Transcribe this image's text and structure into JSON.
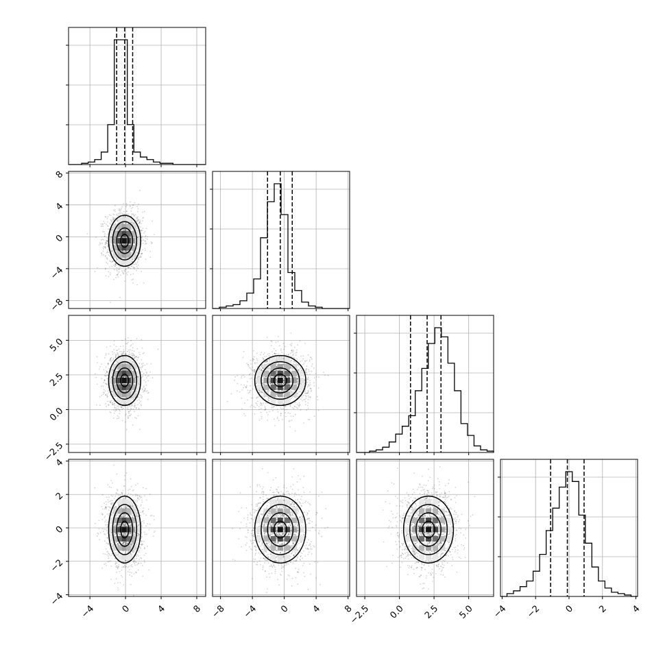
{
  "chart_data": {
    "type": "corner",
    "grid": true,
    "colors": {
      "hist": "#000000",
      "grid": "#b0b0b0",
      "points": "#000000"
    },
    "parameters": [
      {
        "index": 0,
        "range": [
          -6.4,
          9.0
        ],
        "ticks": [
          -4,
          0,
          4,
          8
        ],
        "tick_labels": [
          "−4",
          "0",
          "4",
          "8"
        ],
        "quantiles": [
          -1.0,
          -0.1,
          0.8
        ],
        "mean": -0.1,
        "sd": 0.9,
        "hist_counts": [
          0,
          0,
          1,
          2,
          4,
          10,
          32,
          100,
          100,
          32,
          10,
          6,
          4,
          2,
          1,
          1,
          0,
          0,
          0,
          0,
          0
        ]
      },
      {
        "index": 1,
        "range": [
          -9.0,
          8.2
        ],
        "ticks": [
          -8,
          -4,
          0,
          4,
          8
        ],
        "tick_labels": [
          "−8",
          "−4",
          "0",
          "4",
          "8"
        ],
        "quantiles": [
          -2.1,
          -0.5,
          1.0
        ],
        "mean": -0.5,
        "sd": 1.6,
        "hist_counts": [
          0,
          1,
          2,
          3,
          6,
          12,
          23,
          55,
          83,
          97,
          73,
          28,
          14,
          5,
          2,
          1,
          0,
          0,
          0,
          0
        ]
      },
      {
        "index": 2,
        "range": [
          -3.1,
          6.8
        ],
        "ticks": [
          -2.5,
          0.0,
          2.5,
          5.0
        ],
        "tick_labels": [
          "−2.5",
          "0.0",
          "2.5",
          "5.0"
        ],
        "quantiles": [
          0.8,
          2.0,
          3.0
        ],
        "mean": 2.1,
        "sd": 0.9,
        "hist_counts": [
          0,
          0,
          1,
          2,
          4,
          8,
          14,
          20,
          28,
          47,
          64,
          83,
          95,
          88,
          68,
          47,
          22,
          13,
          5,
          2,
          1
        ]
      },
      {
        "index": 3,
        "range": [
          -4.1,
          4.1
        ],
        "ticks": [
          -4,
          -2,
          0,
          2,
          4
        ],
        "tick_labels": [
          "−4",
          "−2",
          "0",
          "2",
          "4"
        ],
        "quantiles": [
          -1.1,
          -0.1,
          0.9
        ],
        "mean": -0.1,
        "sd": 1.0,
        "hist_counts": [
          0,
          2,
          4,
          7,
          11,
          18,
          30,
          47,
          63,
          78,
          89,
          82,
          58,
          38,
          21,
          11,
          6,
          3,
          2,
          1,
          0
        ]
      }
    ],
    "left_axis_labels": {
      "row1": [
        "8",
        "4",
        "0",
        "−4",
        "−8"
      ],
      "row2": [
        "5.0",
        "2.5",
        "0.0",
        "−2.5"
      ],
      "row3": [
        "4",
        "2",
        "0",
        "−2",
        "−4"
      ]
    },
    "bottom_axis_labels": {
      "col0": [
        "−4",
        "0",
        "4",
        "8"
      ],
      "col1": [
        "−8",
        "−4",
        "0",
        "4",
        "8"
      ],
      "col2": [
        "−2.5",
        "0.0",
        "2.5",
        "5.0"
      ],
      "col3": [
        "−4",
        "−2",
        "0",
        "2",
        "4"
      ]
    },
    "contour_levels": [
      0.5,
      1.0,
      1.5,
      2.0
    ],
    "density_panels": [
      {
        "row": 1,
        "col": 0
      },
      {
        "row": 2,
        "col": 0
      },
      {
        "row": 2,
        "col": 1
      },
      {
        "row": 3,
        "col": 0
      },
      {
        "row": 3,
        "col": 1
      },
      {
        "row": 3,
        "col": 2
      }
    ]
  }
}
